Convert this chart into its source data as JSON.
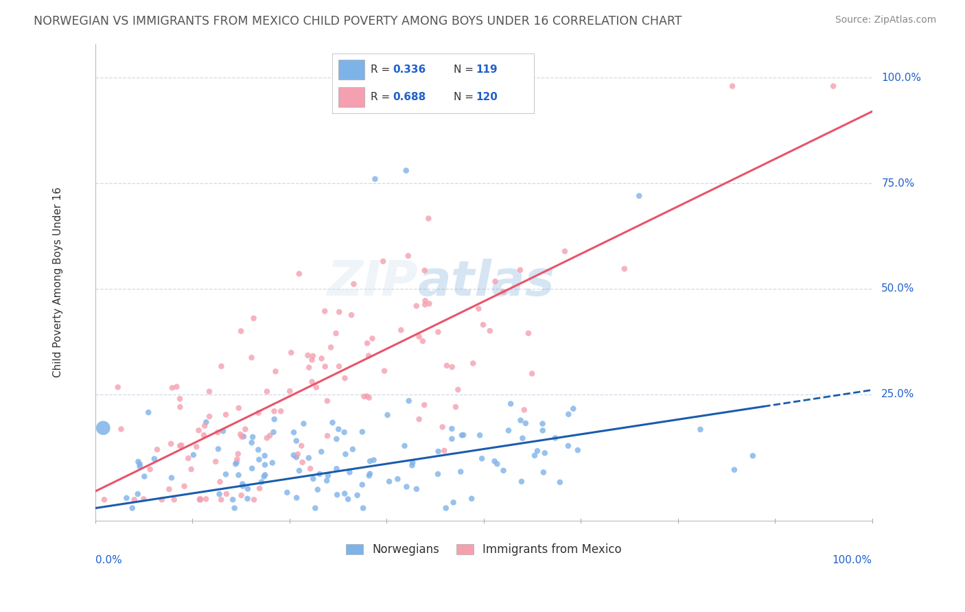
{
  "title": "NORWEGIAN VS IMMIGRANTS FROM MEXICO CHILD POVERTY AMONG BOYS UNDER 16 CORRELATION CHART",
  "source": "Source: ZipAtlas.com",
  "ylabel": "Child Poverty Among Boys Under 16",
  "blue_R": 0.336,
  "blue_N": 119,
  "pink_R": 0.688,
  "pink_N": 120,
  "blue_color": "#7eb3e8",
  "pink_color": "#f4a0b0",
  "blue_line_color": "#1a5cad",
  "pink_line_color": "#e8546a",
  "watermark_color": "#c8d8f0",
  "background_color": "#ffffff",
  "grid_color": "#d0d8e8",
  "title_color": "#555555",
  "source_color": "#888888",
  "legend_text_color": "#2060cc",
  "axis_label_color": "#2060cc",
  "ytick_positions": [
    0.25,
    0.5,
    0.75,
    1.0
  ],
  "ytick_labels": [
    "25.0%",
    "50.0%",
    "75.0%",
    "100.0%"
  ],
  "blue_line_slope": 0.28,
  "blue_line_intercept": -0.02,
  "pink_line_slope": 0.9,
  "pink_line_intercept": 0.02
}
